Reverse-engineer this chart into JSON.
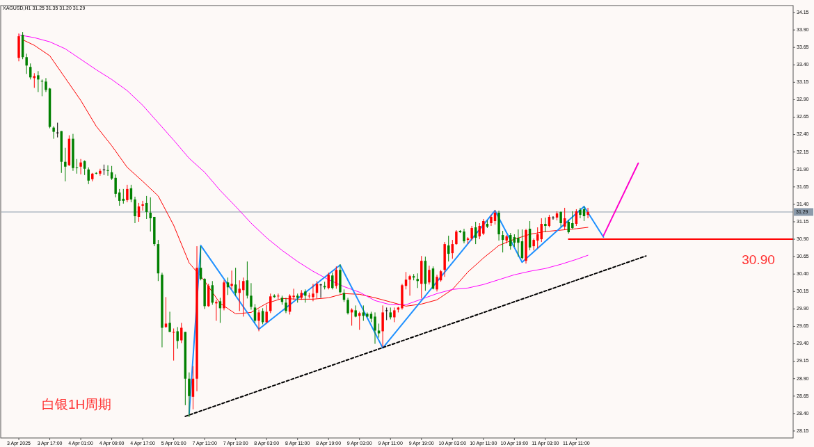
{
  "chart_data": {
    "type": "candlestick",
    "title": "XAGUSD,H1  31.25 31.35 31.20 31.29",
    "categories": [
      "3 Apr 2025",
      null,
      null,
      null,
      null,
      null,
      null,
      null,
      "3 Apr 17:00",
      null,
      null,
      null,
      null,
      null,
      null,
      null,
      "4 Apr 01:00",
      null,
      null,
      null,
      null,
      null,
      null,
      null,
      "4 Apr 09:00",
      null,
      null,
      null,
      null,
      null,
      null,
      null,
      "4 Apr 17:00",
      null,
      null,
      null,
      null,
      null,
      null,
      null,
      "5 Apr 01:00",
      null,
      null,
      null,
      null,
      null,
      null,
      null,
      "7 Apr 11:00",
      null,
      null,
      null,
      null,
      null,
      null,
      null,
      "7 Apr 19:00",
      null,
      null,
      null,
      null,
      null,
      null,
      null,
      "8 Apr 03:00",
      null,
      null,
      null,
      null,
      null,
      null,
      null,
      "8 Apr 11:00",
      null,
      null,
      null,
      null,
      null,
      null,
      null,
      "8 Apr 19:00",
      null,
      null,
      null,
      null,
      null,
      null,
      null,
      "9 Apr 03:00",
      null,
      null,
      null,
      null,
      null,
      null,
      null,
      "9 Apr 11:00",
      null,
      null,
      null,
      null,
      null,
      null,
      null,
      "9 Apr 19:00",
      null,
      null,
      null,
      null,
      null,
      null,
      null,
      "10 Apr 03:00",
      null,
      null,
      null,
      null,
      null,
      null,
      null,
      "10 Apr 11:00",
      null,
      null,
      null,
      null,
      null,
      null,
      null,
      "10 Apr 19:00",
      null,
      null,
      null,
      null,
      null,
      null,
      null,
      "11 Apr 03:00",
      null,
      null,
      null,
      null,
      null,
      null,
      null,
      "11 Apr 11:00",
      null,
      null,
      null,
      null,
      null,
      null,
      null,
      null,
      null,
      null,
      null,
      null,
      null,
      null,
      null,
      null,
      null,
      null,
      null,
      null,
      null,
      null,
      null,
      null,
      null,
      null,
      null,
      null,
      null,
      null,
      null,
      null,
      null,
      null,
      null,
      null,
      null,
      null,
      null,
      null,
      null,
      null,
      null,
      null,
      null,
      null,
      null,
      null,
      null,
      null,
      null,
      null,
      null,
      null,
      null,
      null
    ],
    "ohlc": [
      [
        33.5,
        33.85,
        33.45,
        33.81
      ],
      [
        33.83,
        33.87,
        33.48,
        33.51
      ],
      [
        33.51,
        33.56,
        33.27,
        33.39
      ],
      [
        33.37,
        33.42,
        33.19,
        33.22
      ],
      [
        33.21,
        33.28,
        33.07,
        33.24
      ],
      [
        33.25,
        33.31,
        33.01,
        33.19
      ],
      [
        33.17,
        33.19,
        32.95,
        33.16
      ],
      [
        33.16,
        33.21,
        33.01,
        33.04
      ],
      [
        33.06,
        33.07,
        32.49,
        32.51
      ],
      [
        32.5,
        32.52,
        32.34,
        32.44
      ],
      [
        32.43,
        32.57,
        32.36,
        32.43
      ],
      [
        32.45,
        32.45,
        31.85,
        32.01
      ],
      [
        32.01,
        32.21,
        31.73,
        31.94
      ],
      [
        31.96,
        32.39,
        31.95,
        32.34
      ],
      [
        32.34,
        32.41,
        31.88,
        31.92
      ],
      [
        31.93,
        32.05,
        31.84,
        31.92
      ],
      [
        31.94,
        32.05,
        31.83,
        32.0
      ],
      [
        32.02,
        32.03,
        31.82,
        31.91
      ],
      [
        31.9,
        31.93,
        31.69,
        31.74
      ],
      [
        31.76,
        31.85,
        31.73,
        31.84
      ],
      [
        31.85,
        31.86,
        31.83,
        31.84
      ],
      [
        31.84,
        31.91,
        31.81,
        31.88
      ],
      [
        31.9,
        31.97,
        31.82,
        31.9
      ],
      [
        31.89,
        31.96,
        31.81,
        31.88
      ],
      [
        31.86,
        31.95,
        31.75,
        31.77
      ],
      [
        31.78,
        31.83,
        31.5,
        31.55
      ],
      [
        31.57,
        31.62,
        31.38,
        31.45
      ],
      [
        31.48,
        31.62,
        31.41,
        31.45
      ],
      [
        31.46,
        31.68,
        31.43,
        31.62
      ],
      [
        31.63,
        31.68,
        31.43,
        31.47
      ],
      [
        31.47,
        31.51,
        31.13,
        31.23
      ],
      [
        31.22,
        31.42,
        31.15,
        31.37
      ],
      [
        31.38,
        31.45,
        31.31,
        31.4
      ],
      [
        31.42,
        31.52,
        31.19,
        31.29
      ],
      [
        31.28,
        31.5,
        31.01,
        31.2
      ],
      [
        31.22,
        31.22,
        30.8,
        30.83
      ],
      [
        30.83,
        30.89,
        30.3,
        30.41
      ],
      [
        30.39,
        30.42,
        29.35,
        29.63
      ],
      [
        29.64,
        30.07,
        29.63,
        29.69
      ],
      [
        29.7,
        29.86,
        29.57,
        29.57
      ],
      [
        29.56,
        29.62,
        29.16,
        29.57
      ],
      [
        29.58,
        29.64,
        29.33,
        29.44
      ],
      [
        29.45,
        29.7,
        29.41,
        29.63
      ],
      [
        29.57,
        29.57,
        28.52,
        28.9
      ],
      [
        28.9,
        28.99,
        28.35,
        28.65
      ],
      [
        28.64,
        29.08,
        28.46,
        28.9
      ],
      [
        28.9,
        30.8,
        28.72,
        30.49
      ],
      [
        30.49,
        30.8,
        30.31,
        30.33
      ],
      [
        30.33,
        30.34,
        29.9,
        29.94
      ],
      [
        29.94,
        30.26,
        29.93,
        30.23
      ],
      [
        30.24,
        30.3,
        29.96,
        29.99
      ],
      [
        29.98,
        30.03,
        29.73,
        30.0
      ],
      [
        30.01,
        30.06,
        29.7,
        29.91
      ],
      [
        29.91,
        30.31,
        29.88,
        30.28
      ],
      [
        30.28,
        30.35,
        30.1,
        30.21
      ],
      [
        30.23,
        30.45,
        30.18,
        30.26
      ],
      [
        30.25,
        30.49,
        30.09,
        30.13
      ],
      [
        30.13,
        30.31,
        29.87,
        30.19
      ],
      [
        30.17,
        30.35,
        29.79,
        30.3
      ],
      [
        30.31,
        30.58,
        30.05,
        30.09
      ],
      [
        30.09,
        30.27,
        29.89,
        29.93
      ],
      [
        29.92,
        29.97,
        29.7,
        29.73
      ],
      [
        29.73,
        29.89,
        29.58,
        29.85
      ],
      [
        29.87,
        29.91,
        29.68,
        29.71
      ],
      [
        29.71,
        29.96,
        29.7,
        29.86
      ],
      [
        29.87,
        30.12,
        29.84,
        30.08
      ],
      [
        30.09,
        30.11,
        30.06,
        30.07
      ],
      [
        30.08,
        30.12,
        30.04,
        30.09
      ],
      [
        30.06,
        30.09,
        29.96,
        30.0
      ],
      [
        29.99,
        30.06,
        29.84,
        29.87
      ],
      [
        29.86,
        30.11,
        29.82,
        30.09
      ],
      [
        30.07,
        30.19,
        30.03,
        30.09
      ],
      [
        30.09,
        30.12,
        29.99,
        30.06
      ],
      [
        30.06,
        30.17,
        30.03,
        30.13
      ],
      [
        30.15,
        30.18,
        29.99,
        30.09
      ],
      [
        30.08,
        30.13,
        30.05,
        30.09
      ],
      [
        30.07,
        30.26,
        30.01,
        30.12
      ],
      [
        30.13,
        30.3,
        30.05,
        30.26
      ],
      [
        30.25,
        30.26,
        30.06,
        30.25
      ],
      [
        30.23,
        30.29,
        30.18,
        30.21
      ],
      [
        30.2,
        30.42,
        30.18,
        30.39
      ],
      [
        30.38,
        30.42,
        30.18,
        30.2
      ],
      [
        30.23,
        30.51,
        30.19,
        30.46
      ],
      [
        30.46,
        30.54,
        30.12,
        30.14
      ],
      [
        30.13,
        30.18,
        30.0,
        30.03
      ],
      [
        30.03,
        30.06,
        29.82,
        29.84
      ],
      [
        29.85,
        29.91,
        29.66,
        29.89
      ],
      [
        29.88,
        29.95,
        29.78,
        29.79
      ],
      [
        29.8,
        29.86,
        29.6,
        29.84
      ],
      [
        29.85,
        29.95,
        29.73,
        29.8
      ],
      [
        29.83,
        29.85,
        29.78,
        29.79
      ],
      [
        29.83,
        29.86,
        29.71,
        29.76
      ],
      [
        29.79,
        29.85,
        29.4,
        29.59
      ],
      [
        29.59,
        29.69,
        29.49,
        29.55
      ],
      [
        29.58,
        29.95,
        29.36,
        29.85
      ],
      [
        29.88,
        29.92,
        29.74,
        29.88
      ],
      [
        29.85,
        29.92,
        29.75,
        29.78
      ],
      [
        29.78,
        29.92,
        29.71,
        29.88
      ],
      [
        29.89,
        29.93,
        29.85,
        29.92
      ],
      [
        29.91,
        30.26,
        29.89,
        30.24
      ],
      [
        30.23,
        30.43,
        30.18,
        30.32
      ],
      [
        30.32,
        30.39,
        30.09,
        30.37
      ],
      [
        30.37,
        30.4,
        30.31,
        30.35
      ],
      [
        30.33,
        30.41,
        30.2,
        30.3
      ],
      [
        30.26,
        30.66,
        30.05,
        30.59
      ],
      [
        30.59,
        30.65,
        30.16,
        30.26
      ],
      [
        30.28,
        30.52,
        30.25,
        30.46
      ],
      [
        30.48,
        30.51,
        30.18,
        30.19
      ],
      [
        30.18,
        30.39,
        30.15,
        30.36
      ],
      [
        30.31,
        30.46,
        30.29,
        30.44
      ],
      [
        30.46,
        30.86,
        30.36,
        30.83
      ],
      [
        30.81,
        30.95,
        30.58,
        30.69
      ],
      [
        30.7,
        30.89,
        30.62,
        30.83
      ],
      [
        30.83,
        31.03,
        30.82,
        31.01
      ],
      [
        31.02,
        31.03,
        30.99,
        31.0
      ],
      [
        31.01,
        31.05,
        30.84,
        30.87
      ],
      [
        30.89,
        30.93,
        30.83,
        30.91
      ],
      [
        30.91,
        31.09,
        30.88,
        31.06
      ],
      [
        31.07,
        31.15,
        30.83,
        30.92
      ],
      [
        30.94,
        31.13,
        30.9,
        31.09
      ],
      [
        30.98,
        31.19,
        30.96,
        31.16
      ],
      [
        31.12,
        31.17,
        31.06,
        31.08
      ],
      [
        31.13,
        31.25,
        31.09,
        31.22
      ],
      [
        31.16,
        31.32,
        31.11,
        31.28
      ],
      [
        31.28,
        31.31,
        30.88,
        30.97
      ],
      [
        30.96,
        31.02,
        30.71,
        30.89
      ],
      [
        30.88,
        30.96,
        30.84,
        30.94
      ],
      [
        30.96,
        30.99,
        30.75,
        30.8
      ],
      [
        30.93,
        30.97,
        30.79,
        30.85
      ],
      [
        30.92,
        31.04,
        30.65,
        30.85
      ],
      [
        30.87,
        31.04,
        30.61,
        30.63
      ],
      [
        30.59,
        31.05,
        30.55,
        31.03
      ],
      [
        31.05,
        31.16,
        30.74,
        30.78
      ],
      [
        30.8,
        30.91,
        30.74,
        30.89
      ],
      [
        30.88,
        31.07,
        30.77,
        30.97
      ],
      [
        30.9,
        31.2,
        30.86,
        31.12
      ],
      [
        31.12,
        31.21,
        31.0,
        31.09
      ],
      [
        31.09,
        31.25,
        31.07,
        31.22
      ],
      [
        31.21,
        31.23,
        31.18,
        31.21
      ],
      [
        31.21,
        31.3,
        31.17,
        31.27
      ],
      [
        31.29,
        31.3,
        31.08,
        31.13
      ],
      [
        31.08,
        31.35,
        31.04,
        31.2
      ],
      [
        31.15,
        31.18,
        30.98,
        31.0
      ],
      [
        31.13,
        31.3,
        31.04,
        31.06
      ],
      [
        31.12,
        31.33,
        31.09,
        31.3
      ],
      [
        31.32,
        31.35,
        31.2,
        31.25
      ],
      [
        31.33,
        31.37,
        31.16,
        31.23
      ],
      [
        31.25,
        31.35,
        31.2,
        31.29
      ],
      null,
      null,
      null,
      null,
      null,
      null,
      null,
      null,
      null,
      null,
      null,
      null,
      null,
      null,
      null,
      null,
      null,
      null,
      null,
      null,
      null,
      null,
      null,
      null,
      null,
      null,
      null,
      null,
      null,
      null,
      null,
      null,
      null,
      null,
      null,
      null,
      null,
      null,
      null,
      null,
      null,
      null,
      null,
      null,
      null,
      null,
      null,
      null,
      null,
      null,
      null,
      null,
      null
    ],
    "colors": [
      "#ff0000",
      "#008000",
      "#008000",
      "#008000",
      "#ff0000",
      "#008000",
      "#008000",
      "#008000",
      "#008000",
      "#008000",
      "#000000",
      "#008000",
      "#008000",
      "#ff0000",
      "#008000",
      "#008000",
      "#ff0000",
      "#008000",
      "#008000",
      "#ff0000",
      "#008000",
      "#ff0000",
      "#000000",
      "#008000",
      "#008000",
      "#008000",
      "#008000",
      "#008000",
      "#ff0000",
      "#008000",
      "#008000",
      "#ff0000",
      "#ff0000",
      "#008000",
      "#008000",
      "#008000",
      "#008000",
      "#008000",
      "#ff0000",
      "#008000",
      "#ff0000",
      "#008000",
      "#ff0000",
      "#008000",
      "#008000",
      "#ff0000",
      "#ff0000",
      "#008000",
      "#008000",
      "#ff0000",
      "#008000",
      "#ff0000",
      "#008000",
      "#ff0000",
      "#008000",
      "#ff0000",
      "#008000",
      "#ff0000",
      "#ff0000",
      "#008000",
      "#008000",
      "#008000",
      "#ff0000",
      "#008000",
      "#ff0000",
      "#ff0000",
      "#008000",
      "#ff0000",
      "#008000",
      "#008000",
      "#ff0000",
      "#ff0000",
      "#008000",
      "#ff0000",
      "#008000",
      "#ff0000",
      "#ff0000",
      "#ff0000",
      "#000000",
      "#008000",
      "#ff0000",
      "#008000",
      "#ff0000",
      "#008000",
      "#008000",
      "#008000",
      "#ff0000",
      "#008000",
      "#ff0000",
      "#008000",
      "#008000",
      "#008000",
      "#008000",
      "#008000",
      "#ff0000",
      "#000000",
      "#008000",
      "#ff0000",
      "#ff0000",
      "#ff0000",
      "#ff0000",
      "#ff0000",
      "#008000",
      "#008000",
      "#ff0000",
      "#008000",
      "#ff0000",
      "#008000",
      "#ff0000",
      "#ff0000",
      "#ff0000",
      "#008000",
      "#ff0000",
      "#ff0000",
      "#008000",
      "#008000",
      "#ff0000",
      "#ff0000",
      "#008000",
      "#ff0000",
      "#ff0000",
      "#008000",
      "#ff0000",
      "#ff0000",
      "#008000",
      "#008000",
      "#ff0000",
      "#008000",
      "#008000",
      "#008000",
      "#008000",
      "#ff0000",
      "#008000",
      "#ff0000",
      "#ff0000",
      "#ff0000",
      "#008000",
      "#ff0000",
      "#000000",
      "#ff0000",
      "#008000",
      "#ff0000",
      "#008000",
      "#008000",
      "#ff0000",
      "#008000",
      "#008000",
      "#ff0000",
      null,
      null,
      null,
      null,
      null,
      null,
      null,
      null,
      null,
      null,
      null,
      null,
      null,
      null,
      null,
      null,
      null,
      null,
      null,
      null,
      null,
      null,
      null,
      null,
      null,
      null,
      null,
      null,
      null,
      null,
      null,
      null,
      null,
      null,
      null,
      null,
      null,
      null,
      null,
      null,
      null,
      null,
      null,
      null,
      null,
      null,
      null,
      null,
      null,
      null,
      null,
      null,
      null
    ],
    "series": [
      {
        "type": "line",
        "color": "#ff0000",
        "values": [
          null,
          33.76,
          null,
          null,
          33.68,
          null,
          null,
          null,
          33.53,
          null,
          null,
          null,
          33.21,
          null,
          null,
          null,
          32.89,
          null,
          null,
          null,
          32.52,
          null,
          null,
          null,
          32.24,
          null,
          null,
          null,
          31.93,
          null,
          null,
          null,
          31.73,
          null,
          null,
          null,
          31.52,
          null,
          null,
          null,
          31.1,
          null,
          null,
          null,
          30.56,
          null,
          null,
          null,
          30.3,
          null,
          null,
          null,
          29.98,
          null,
          null,
          null,
          29.83,
          null,
          null,
          null,
          29.85,
          null,
          null,
          null,
          29.98,
          null,
          null,
          null,
          30.05,
          null,
          null,
          null,
          30.04,
          null,
          null,
          null,
          30.04,
          null,
          null,
          null,
          30.06,
          null,
          null,
          null,
          30.12,
          null,
          null,
          null,
          30.11,
          null,
          null,
          null,
          30.06,
          null,
          null,
          null,
          30.0,
          null,
          null,
          null,
          29.94,
          null,
          null,
          null,
          29.97,
          null,
          null,
          null,
          30.03,
          null,
          null,
          null,
          30.18,
          null,
          null,
          null,
          30.43,
          null,
          null,
          null,
          30.63,
          null,
          null,
          null,
          30.81,
          null,
          null,
          null,
          30.9,
          null,
          null,
          null,
          30.97,
          null,
          null,
          null,
          31.01,
          null,
          null,
          null,
          31.03,
          null,
          null,
          null,
          31.05,
          null,
          null,
          31.07,
          null,
          null,
          null,
          null,
          null,
          null,
          null,
          null,
          null,
          null,
          null,
          null,
          null,
          null,
          null,
          null,
          null,
          null,
          null,
          null,
          null,
          null,
          null,
          null,
          null,
          null,
          null,
          null,
          null,
          null,
          null,
          null,
          null,
          null,
          null,
          null,
          null,
          null,
          null,
          null,
          null,
          null,
          null,
          null,
          null,
          null,
          null,
          null,
          null,
          null,
          null,
          null,
          null
        ]
      },
      {
        "type": "line",
        "color": "#ff00ff",
        "values": [
          33.83,
          null,
          null,
          null,
          33.79,
          null,
          null,
          null,
          33.73,
          null,
          null,
          null,
          33.63,
          null,
          null,
          null,
          33.48,
          null,
          null,
          null,
          33.33,
          null,
          null,
          null,
          33.19,
          null,
          null,
          null,
          33.03,
          null,
          null,
          null,
          32.82,
          null,
          null,
          null,
          32.57,
          null,
          null,
          null,
          32.32,
          null,
          null,
          null,
          32.06,
          null,
          null,
          null,
          31.86,
          null,
          null,
          null,
          31.6,
          null,
          null,
          null,
          31.37,
          null,
          null,
          null,
          31.13,
          null,
          null,
          null,
          30.92,
          null,
          null,
          null,
          30.74,
          null,
          null,
          null,
          30.58,
          null,
          null,
          null,
          30.44,
          null,
          null,
          null,
          30.32,
          null,
          null,
          null,
          30.22,
          null,
          null,
          null,
          30.14,
          null,
          null,
          null,
          30.02,
          null,
          null,
          null,
          29.96,
          null,
          null,
          null,
          29.96,
          null,
          null,
          null,
          30.04,
          null,
          null,
          null,
          30.12,
          null,
          null,
          null,
          30.18,
          null,
          null,
          null,
          30.2,
          null,
          null,
          null,
          30.25,
          null,
          null,
          null,
          30.32,
          null,
          null,
          null,
          30.39,
          null,
          null,
          null,
          30.44,
          null,
          null,
          null,
          30.48,
          null,
          null,
          null,
          30.54,
          null,
          null,
          null,
          30.61,
          null,
          null,
          30.67,
          null,
          null,
          null,
          null,
          null,
          null,
          null,
          null,
          null,
          null,
          null,
          null,
          null,
          null,
          null,
          null,
          null,
          null,
          null,
          null,
          null,
          null,
          null,
          null,
          null,
          null,
          null,
          null,
          null,
          null,
          null,
          null,
          null,
          null,
          null,
          null,
          null,
          null,
          null,
          null,
          null,
          null,
          null,
          null,
          null,
          null,
          null,
          null,
          null,
          null,
          null,
          null,
          null
        ]
      },
      {
        "type": "line",
        "color": "#1e90ff",
        "values": [
          null,
          null,
          null,
          null,
          null,
          null,
          null,
          null,
          null,
          null,
          null,
          null,
          null,
          null,
          null,
          null,
          null,
          null,
          null,
          null,
          null,
          null,
          null,
          null,
          null,
          null,
          null,
          null,
          null,
          null,
          null,
          null,
          null,
          null,
          null,
          null,
          null,
          null,
          null,
          null,
          null,
          null,
          null,
          null,
          28.4,
          null,
          null,
          30.81,
          null,
          null,
          null,
          null,
          null,
          null,
          null,
          null,
          null,
          null,
          null,
          null,
          null,
          null,
          29.61,
          null,
          null,
          null,
          null,
          null,
          null,
          null,
          null,
          null,
          null,
          null,
          null,
          null,
          null,
          null,
          null,
          null,
          null,
          null,
          null,
          30.53,
          null,
          null,
          null,
          null,
          null,
          null,
          null,
          null,
          null,
          null,
          29.34,
          null,
          null,
          null,
          null,
          null,
          null,
          null,
          null,
          null,
          null,
          null,
          null,
          null,
          null,
          null,
          null,
          null,
          null,
          null,
          null,
          null,
          null,
          null,
          null,
          null,
          null,
          null,
          null,
          31.31,
          null,
          null,
          null,
          null,
          null,
          null,
          30.57,
          null,
          null,
          null,
          null,
          null,
          null,
          null,
          null,
          null,
          null,
          null,
          null,
          null,
          null,
          null,
          31.37,
          null,
          null,
          null,
          null,
          30.93,
          null,
          null,
          null,
          null,
          null,
          null,
          null,
          null,
          null,
          null,
          null,
          null,
          null,
          null,
          null,
          null,
          null,
          null,
          null,
          null,
          null,
          null,
          null,
          null,
          null,
          null,
          null,
          null,
          null,
          null,
          null,
          null,
          null,
          null,
          null,
          null,
          null,
          null,
          null,
          null,
          null,
          null,
          null,
          null,
          null,
          null,
          null,
          null,
          null
        ]
      },
      {
        "type": "line",
        "color": "#ff00cc",
        "values": [
          null,
          null,
          null,
          null,
          null,
          null,
          null,
          null,
          null,
          null,
          null,
          null,
          null,
          null,
          null,
          null,
          null,
          null,
          null,
          null,
          null,
          null,
          null,
          null,
          null,
          null,
          null,
          null,
          null,
          null,
          null,
          null,
          null,
          null,
          null,
          null,
          null,
          null,
          null,
          null,
          null,
          null,
          null,
          null,
          null,
          null,
          null,
          null,
          null,
          null,
          null,
          null,
          null,
          null,
          null,
          null,
          null,
          null,
          null,
          null,
          null,
          null,
          null,
          null,
          null,
          null,
          null,
          null,
          null,
          null,
          null,
          null,
          null,
          null,
          null,
          null,
          null,
          null,
          null,
          null,
          null,
          null,
          null,
          null,
          null,
          null,
          null,
          null,
          null,
          null,
          null,
          null,
          null,
          null,
          null,
          null,
          null,
          null,
          null,
          null,
          null,
          null,
          null,
          null,
          null,
          null,
          null,
          null,
          null,
          null,
          null,
          null,
          null,
          null,
          null,
          null,
          null,
          null,
          null,
          null,
          null,
          null,
          null,
          null,
          null,
          null,
          null,
          null,
          null,
          null,
          null,
          null,
          null,
          null,
          null,
          null,
          null,
          null,
          null,
          null,
          null,
          null,
          null,
          null,
          null,
          null,
          null,
          null,
          null,
          null,
          null,
          30.95,
          null,
          null,
          null,
          null,
          null,
          null,
          null,
          null,
          31.99,
          null,
          null,
          null,
          null,
          null,
          null,
          null,
          null,
          null,
          null,
          null,
          null,
          null,
          null,
          null,
          null,
          null,
          null,
          null,
          null,
          null,
          null,
          null,
          null,
          null,
          null,
          null,
          null,
          null,
          null,
          null,
          null,
          null,
          null,
          null,
          null,
          null,
          null,
          null,
          null
        ]
      },
      {
        "type": "line",
        "color": "#000000",
        "line_style": "dashed",
        "values": [
          null,
          null,
          null,
          null,
          null,
          null,
          null,
          null,
          null,
          null,
          null,
          null,
          null,
          null,
          null,
          null,
          null,
          null,
          null,
          null,
          null,
          null,
          null,
          null,
          null,
          null,
          null,
          null,
          null,
          null,
          null,
          null,
          null,
          null,
          null,
          null,
          null,
          null,
          null,
          null,
          null,
          null,
          null,
          28.36,
          null,
          null,
          null,
          null,
          null,
          null,
          null,
          null,
          null,
          null,
          null,
          null,
          null,
          null,
          null,
          null,
          null,
          null,
          null,
          null,
          null,
          null,
          null,
          null,
          null,
          null,
          null,
          null,
          null,
          null,
          null,
          null,
          null,
          null,
          null,
          null,
          null,
          null,
          null,
          null,
          null,
          null,
          null,
          null,
          null,
          null,
          null,
          null,
          null,
          null,
          null,
          null,
          null,
          null,
          null,
          null,
          null,
          null,
          null,
          null,
          null,
          null,
          null,
          null,
          null,
          null,
          null,
          null,
          null,
          null,
          null,
          null,
          null,
          null,
          null,
          null,
          null,
          null,
          null,
          null,
          null,
          null,
          null,
          null,
          null,
          null,
          null,
          null,
          null,
          null,
          null,
          null,
          null,
          null,
          null,
          null,
          null,
          null,
          null,
          null,
          null,
          null,
          null,
          null,
          null,
          null,
          null,
          null,
          null,
          null,
          null,
          null,
          null,
          null,
          null,
          null,
          null,
          null,
          30.66,
          null,
          null,
          null,
          null,
          null,
          null,
          null,
          null,
          null,
          null,
          null,
          null,
          null,
          null,
          null,
          null,
          null,
          null,
          null,
          null,
          null,
          null,
          null,
          null,
          null,
          null,
          null,
          null,
          null,
          null,
          null,
          null,
          null,
          null,
          null,
          null,
          null,
          null
        ]
      },
      {
        "type": "line",
        "color": "#ff0000",
        "values": [
          null,
          null,
          null,
          null,
          null,
          null,
          null,
          null,
          null,
          null,
          null,
          null,
          null,
          null,
          null,
          null,
          null,
          null,
          null,
          null,
          null,
          null,
          null,
          null,
          null,
          null,
          null,
          null,
          null,
          null,
          null,
          null,
          null,
          null,
          null,
          null,
          null,
          null,
          null,
          null,
          null,
          null,
          null,
          null,
          null,
          null,
          null,
          null,
          null,
          null,
          null,
          null,
          null,
          null,
          null,
          null,
          null,
          null,
          null,
          null,
          null,
          null,
          null,
          null,
          null,
          null,
          null,
          null,
          null,
          null,
          null,
          null,
          null,
          null,
          null,
          null,
          null,
          null,
          null,
          null,
          null,
          null,
          null,
          null,
          null,
          null,
          null,
          null,
          null,
          null,
          null,
          null,
          null,
          null,
          null,
          null,
          null,
          null,
          null,
          null,
          null,
          null,
          null,
          null,
          null,
          null,
          null,
          null,
          null,
          null,
          null,
          null,
          null,
          null,
          null,
          null,
          null,
          null,
          null,
          null,
          null,
          null,
          null,
          null,
          null,
          null,
          null,
          null,
          null,
          null,
          null,
          null,
          null,
          null,
          null,
          null,
          null,
          null,
          null,
          null,
          null,
          null,
          30.9,
          null,
          null,
          null,
          null,
          null,
          null,
          null,
          null,
          null,
          null,
          null,
          null,
          null,
          null,
          null,
          null,
          null,
          null,
          null,
          null,
          null,
          null,
          null,
          null,
          null,
          null,
          null,
          null,
          null,
          null,
          null,
          null,
          null,
          null,
          null,
          null,
          null,
          null,
          null,
          null,
          null,
          null,
          null,
          null,
          null,
          null,
          null,
          null,
          null,
          null,
          null,
          null,
          null,
          null,
          null,
          null,
          null,
          30.9
        ]
      }
    ],
    "ylim": [
      28.05,
      34.25
    ],
    "yticks": [
      {
        "value": 28.15,
        "label": "28.15"
      },
      {
        "value": 28.4,
        "label": "28.40"
      },
      {
        "value": 28.65,
        "label": "28.65"
      },
      {
        "value": 28.9,
        "label": "28.90"
      },
      {
        "value": 29.15,
        "label": "29.15"
      },
      {
        "value": 29.4,
        "label": "29.40"
      },
      {
        "value": 29.65,
        "label": "29.65"
      },
      {
        "value": 29.9,
        "label": "29.90"
      },
      {
        "value": 30.15,
        "label": "30.15"
      },
      {
        "value": 30.4,
        "label": "30.40"
      },
      {
        "value": 30.65,
        "label": "30.65"
      },
      {
        "value": 30.9,
        "label": "30.90"
      },
      {
        "value": 31.15,
        "label": "31.15"
      },
      {
        "value": 31.4,
        "label": "31.40"
      },
      {
        "value": 31.65,
        "label": "31.65"
      },
      {
        "value": 31.9,
        "label": "31.90"
      },
      {
        "value": 32.15,
        "label": "32.15"
      },
      {
        "value": 32.4,
        "label": "32.40"
      },
      {
        "value": 32.65,
        "label": "32.65"
      },
      {
        "value": 32.9,
        "label": "32.90"
      },
      {
        "value": 33.15,
        "label": "33.15"
      },
      {
        "value": 33.4,
        "label": "33.40"
      },
      {
        "value": 33.65,
        "label": "33.65"
      },
      {
        "value": 33.9,
        "label": "33.90"
      },
      {
        "value": 34.15,
        "label": "34.15"
      }
    ],
    "ref_lines": [
      {
        "axis": "y",
        "value": 31.29,
        "label": "31.29",
        "color": "#8c9bab"
      }
    ],
    "annotations": [
      "白银1H周期",
      {
        "text": "30.90",
        "y": 30.9
      }
    ]
  }
}
